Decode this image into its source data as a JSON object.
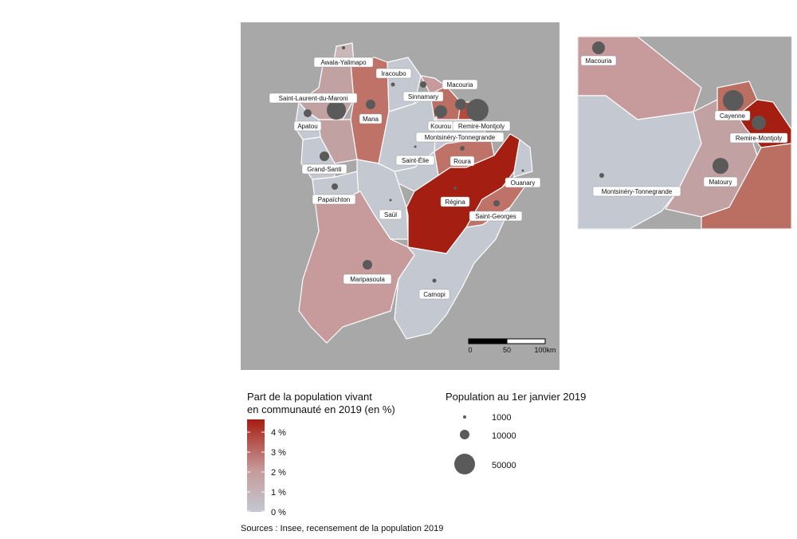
{
  "colors": {
    "background_sea": "#a8a8a8",
    "scale_low": "#c3c8d1",
    "scale_mid": "#c79a9b",
    "scale_high": "#a51e12",
    "bubble": "#5a5a5a"
  },
  "map": {
    "municipalities": [
      {
        "name": "Awala-Yalimapo",
        "share_pct": 0.6
      },
      {
        "name": "Iracoubo",
        "share_pct": 0.4
      },
      {
        "name": "Macouria",
        "share_pct": 1.6
      },
      {
        "name": "Sinnamary",
        "share_pct": 0.5
      },
      {
        "name": "Saint-Laurent-du-Maroni",
        "share_pct": 1.5
      },
      {
        "name": "Mana",
        "share_pct": 2.7
      },
      {
        "name": "Kourou",
        "share_pct": 2.8
      },
      {
        "name": "Remire-Montjoly",
        "share_pct": 4.6
      },
      {
        "name": "Apatou",
        "share_pct": 0.5
      },
      {
        "name": "Montsinéry-Tonnegrande",
        "share_pct": 0.4
      },
      {
        "name": "Saint-Élie",
        "share_pct": 0.3
      },
      {
        "name": "Roura",
        "share_pct": 2.5
      },
      {
        "name": "Grand-Santi",
        "share_pct": 0.4
      },
      {
        "name": "Ouanary",
        "share_pct": 0.3
      },
      {
        "name": "Papaïchton",
        "share_pct": 0.4
      },
      {
        "name": "Régina",
        "share_pct": 4.6
      },
      {
        "name": "Saül",
        "share_pct": 0.3
      },
      {
        "name": "Saint-Georges",
        "share_pct": 2.6
      },
      {
        "name": "Maripasoula",
        "share_pct": 1.5
      },
      {
        "name": "Camopi",
        "share_pct": 0.3
      },
      {
        "name": "Cayenne",
        "share_pct": 2.8
      },
      {
        "name": "Matoury",
        "share_pct": 0.5
      }
    ],
    "scalebar": {
      "ticks": [
        "0",
        "50",
        "100km"
      ]
    }
  },
  "inset": {
    "labels": [
      "Macouria",
      "Cayenne",
      "Remire-Montjoly",
      "Montsinéry-Tonnegrande",
      "Matoury"
    ]
  },
  "legend_color": {
    "title_line1": "Part de la population vivant",
    "title_line2": "en communauté en 2019 (en %)",
    "ticks": [
      "4 %",
      "3 %",
      "2 %",
      "1 %",
      "0 %"
    ]
  },
  "legend_size": {
    "title": "Population au 1er janvier 2019",
    "items": [
      "1000",
      "10000",
      "50000"
    ]
  },
  "source": "Sources : Insee, recensement de la population 2019"
}
